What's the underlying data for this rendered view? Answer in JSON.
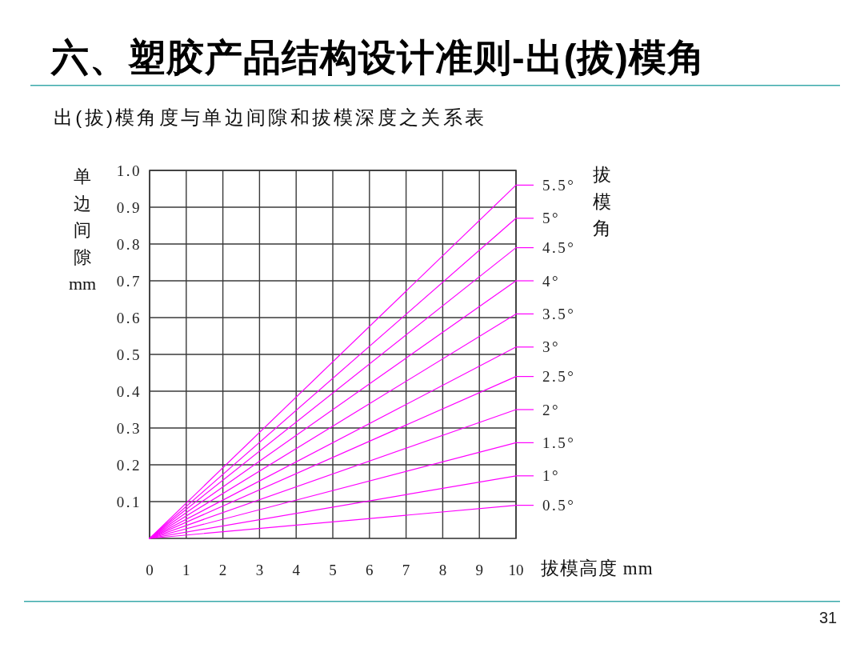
{
  "chart_data": {
    "type": "line",
    "title": "六、塑胶产品结构设计准则-出(拔)模角",
    "subtitle": "出(拔)模角度与单边间隙和拔模深度之关系表",
    "xlabel": "拔模高度 mm",
    "ylabel": "单边间隙mm",
    "legend_title": "拔模角",
    "legend": "right",
    "annotations": [
      "31"
    ],
    "x": [
      0,
      10
    ],
    "series": [
      {
        "name": "0.5°",
        "color": "#ff00ff",
        "values": [
          0,
          0.09
        ]
      },
      {
        "name": "1°",
        "color": "#ff00ff",
        "values": [
          0,
          0.17
        ]
      },
      {
        "name": "1.5°",
        "color": "#ff00ff",
        "values": [
          0,
          0.26
        ]
      },
      {
        "name": "2°",
        "color": "#ff00ff",
        "values": [
          0,
          0.35
        ]
      },
      {
        "name": "2.5°",
        "color": "#ff00ff",
        "values": [
          0,
          0.44
        ]
      },
      {
        "name": "3°",
        "color": "#ff00ff",
        "values": [
          0,
          0.52
        ]
      },
      {
        "name": "3.5°",
        "color": "#ff00ff",
        "values": [
          0,
          0.61
        ]
      },
      {
        "name": "4°",
        "color": "#ff00ff",
        "values": [
          0,
          0.7
        ]
      },
      {
        "name": "4.5°",
        "color": "#ff00ff",
        "values": [
          0,
          0.79
        ]
      },
      {
        "name": "5°",
        "color": "#ff00ff",
        "values": [
          0,
          0.87
        ]
      },
      {
        "name": "5.5°",
        "color": "#ff00ff",
        "values": [
          0,
          0.96
        ]
      }
    ],
    "xlim": [
      0,
      10
    ],
    "ylim": [
      0,
      1
    ],
    "xticks": [
      0,
      1,
      2,
      3,
      4,
      5,
      6,
      7,
      8,
      9,
      10
    ],
    "yticks": [
      0.1,
      0.2,
      0.3,
      0.4,
      0.5,
      0.6,
      0.7,
      0.8,
      0.9,
      {
        "value": 1,
        "label": "1.0"
      }
    ],
    "grid": true
  }
}
